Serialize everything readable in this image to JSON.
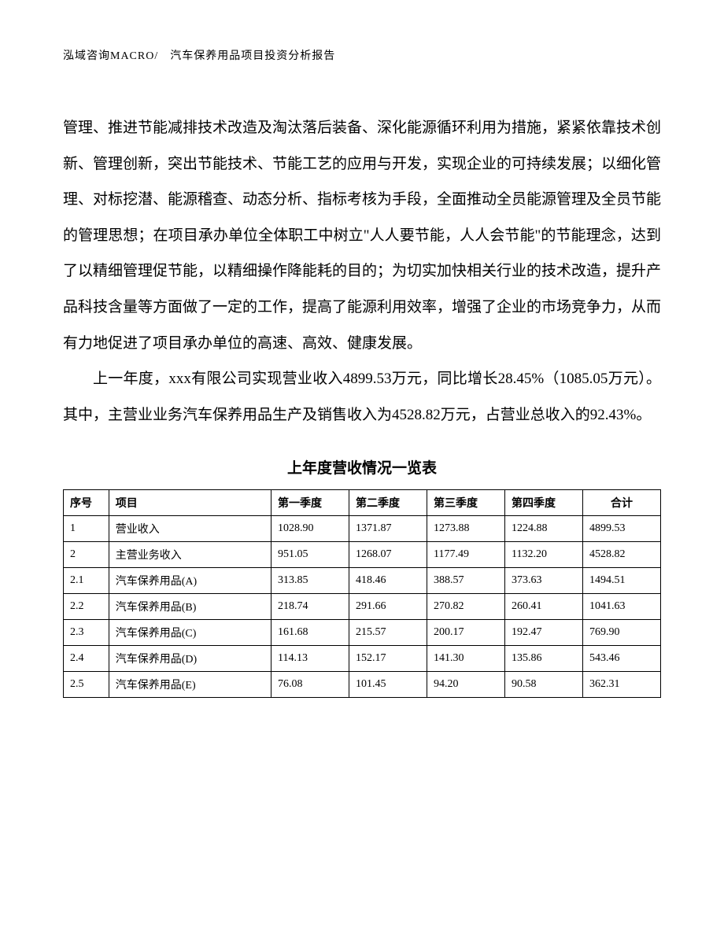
{
  "header": {
    "text": "泓域咨询MACRO/　汽车保养用品项目投资分析报告"
  },
  "paragraphs": {
    "p1": "管理、推进节能减排技术改造及淘汰落后装备、深化能源循环利用为措施，紧紧依靠技术创新、管理创新，突出节能技术、节能工艺的应用与开发，实现企业的可持续发展；以细化管理、对标挖潜、能源稽查、动态分析、指标考核为手段，全面推动全员能源管理及全员节能的管理思想；在项目承办单位全体职工中树立\"人人要节能，人人会节能\"的节能理念，达到了以精细管理促节能，以精细操作降能耗的目的；为切实加快相关行业的技术改造，提升产品科技含量等方面做了一定的工作，提高了能源利用效率，增强了企业的市场竞争力，从而有力地促进了项目承办单位的高速、高效、健康发展。",
    "p2": "上一年度，xxx有限公司实现营业收入4899.53万元，同比增长28.45%（1085.05万元）。其中，主营业业务汽车保养用品生产及销售收入为4528.82万元，占营业总收入的92.43%。"
  },
  "table": {
    "title": "上年度营收情况一览表",
    "columns": [
      "序号",
      "项目",
      "第一季度",
      "第二季度",
      "第三季度",
      "第四季度",
      "合计"
    ],
    "rows": [
      [
        "1",
        "营业收入",
        "1028.90",
        "1371.87",
        "1273.88",
        "1224.88",
        "4899.53"
      ],
      [
        "2",
        "主营业务收入",
        "951.05",
        "1268.07",
        "1177.49",
        "1132.20",
        "4528.82"
      ],
      [
        "2.1",
        "汽车保养用品(A)",
        "313.85",
        "418.46",
        "388.57",
        "373.63",
        "1494.51"
      ],
      [
        "2.2",
        "汽车保养用品(B)",
        "218.74",
        "291.66",
        "270.82",
        "260.41",
        "1041.63"
      ],
      [
        "2.3",
        "汽车保养用品(C)",
        "161.68",
        "215.57",
        "200.17",
        "192.47",
        "769.90"
      ],
      [
        "2.4",
        "汽车保养用品(D)",
        "114.13",
        "152.17",
        "141.30",
        "135.86",
        "543.46"
      ],
      [
        "2.5",
        "汽车保养用品(E)",
        "76.08",
        "101.45",
        "94.20",
        "90.58",
        "362.31"
      ]
    ]
  }
}
